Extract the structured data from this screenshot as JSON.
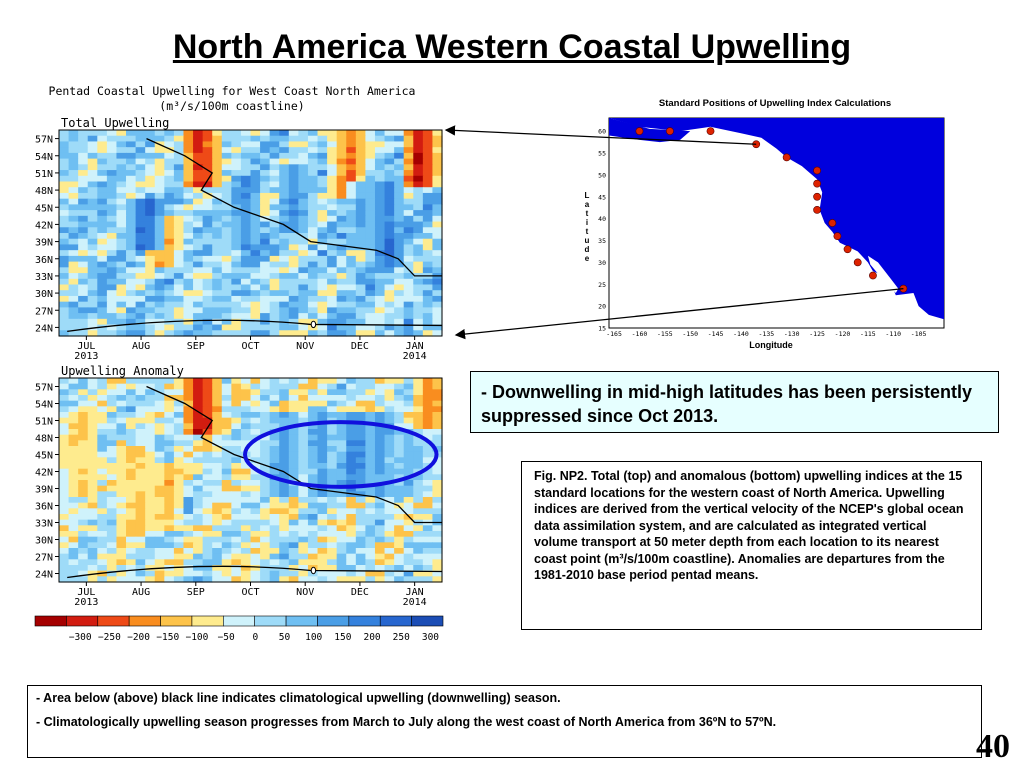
{
  "slide": {
    "title": "North America Western Coastal Upwelling",
    "page_number": "40"
  },
  "figure": {
    "title_line1": "Pentad Coastal Upwelling for West Coast North America",
    "title_line2": "(m³/s/100m coastline)"
  },
  "map": {
    "title": "Standard Positions of Upwelling Index Calculations",
    "xlabel": "Longitude",
    "ylabel": "Latitude",
    "lon_ticks": [
      "-165",
      "-160",
      "-155",
      "-150",
      "-145",
      "-140",
      "-135",
      "-130",
      "-125",
      "-120",
      "-115",
      "-110",
      "-105"
    ],
    "lat_ticks": [
      "60",
      "55",
      "50",
      "45",
      "40",
      "35",
      "30",
      "25",
      "20",
      "15"
    ],
    "stations": [
      {
        "lon": -160,
        "lat": 60
      },
      {
        "lon": -154,
        "lat": 60
      },
      {
        "lon": -146,
        "lat": 60
      },
      {
        "lon": -137,
        "lat": 57
      },
      {
        "lon": -131,
        "lat": 54
      },
      {
        "lon": -125,
        "lat": 51
      },
      {
        "lon": -125,
        "lat": 48
      },
      {
        "lon": -125,
        "lat": 45
      },
      {
        "lon": -125,
        "lat": 42
      },
      {
        "lon": -122,
        "lat": 39
      },
      {
        "lon": -121,
        "lat": 36
      },
      {
        "lon": -119,
        "lat": 33
      },
      {
        "lon": -117,
        "lat": 30
      },
      {
        "lon": -114,
        "lat": 27
      },
      {
        "lon": -108,
        "lat": 24
      }
    ],
    "colors": {
      "ocean": "#ffffff",
      "land": "#0000dd",
      "station": "#dd2200"
    }
  },
  "callout": {
    "dash": "- ",
    "text": "Downwelling in mid-high latitudes has been persistently suppressed since Oct 2013."
  },
  "caption": {
    "text": "Fig. NP2. Total (top) and anomalous (bottom) upwelling indices at the 15 standard locations for the western coast of North America. Upwelling indices are derived from the vertical velocity of the NCEP's global ocean data assimilation system, and are calculated as integrated vertical volume transport at 50 meter depth from each location to its nearest coast point (m³/s/100m coastline). Anomalies are departures from the 1981-2010 base period pentad means."
  },
  "notes": [
    {
      "dash": "- ",
      "text": "Area below (above) black line indicates climatological upwelling (downwelling) season."
    },
    {
      "dash": "- ",
      "text": "Climatologically upwelling season progresses from March to July along the west coast of North America from 36ºN to 57ºN."
    }
  ],
  "chart_data": [
    {
      "type": "heatmap",
      "title": "Total Upwelling",
      "y_ticks": [
        "57N",
        "54N",
        "51N",
        "48N",
        "45N",
        "42N",
        "39N",
        "36N",
        "33N",
        "30N",
        "27N",
        "24N"
      ],
      "x_ticks": [
        "JUL",
        "AUG",
        "SEP",
        "OCT",
        "NOV",
        "DEC",
        "JAN"
      ],
      "x_ticks_year": {
        "JUL": "2013",
        "JAN": "2014"
      },
      "latitudes": [
        57,
        54,
        51,
        48,
        45,
        42,
        39,
        36,
        33,
        30,
        27,
        24
      ],
      "pentads": 40,
      "climatology_boundary": [
        {
          "month_index": 1.6,
          "lat": 57
        },
        {
          "month_index": 2.3,
          "lat": 54
        },
        {
          "month_index": 2.8,
          "lat": 51
        },
        {
          "month_index": 2.6,
          "lat": 48
        },
        {
          "month_index": 3.2,
          "lat": 45
        },
        {
          "month_index": 4.1,
          "lat": 42
        },
        {
          "month_index": 4.6,
          "lat": 39
        },
        {
          "month_index": 5.8,
          "lat": 37.5
        },
        {
          "month_index": 6.2,
          "lat": 36
        },
        {
          "month_index": 6.5,
          "lat": 33
        },
        {
          "month_index": 7.0,
          "lat": 33
        }
      ],
      "hot_spots": [
        {
          "month_index": 2.6,
          "lat_from": 57,
          "lat_to": 50,
          "value": -300
        },
        {
          "month_index": 5.3,
          "lat_from": 57,
          "lat_to": 48,
          "value": -200
        },
        {
          "month_index": 6.6,
          "lat_from": 57,
          "lat_to": 50,
          "value": -300
        },
        {
          "month_index": 1.9,
          "lat_from": 42,
          "lat_to": 36,
          "value": -150
        },
        {
          "month_index": 0.8,
          "lat_from": 48,
          "lat_to": 42,
          "value": 100
        },
        {
          "month_index": 1.6,
          "lat_from": 45,
          "lat_to": 39,
          "value": 250
        },
        {
          "month_index": 3.4,
          "lat_from": 48,
          "lat_to": 39,
          "value": 150
        },
        {
          "month_index": 4.3,
          "lat_from": 51,
          "lat_to": 42,
          "value": 150
        },
        {
          "month_index": 5.6,
          "lat_from": 48,
          "lat_to": 39,
          "value": 150
        },
        {
          "month_index": 6.0,
          "lat_from": 48,
          "lat_to": 36,
          "value": 200
        }
      ]
    },
    {
      "type": "heatmap",
      "title": "Upwelling Anomaly",
      "y_ticks": [
        "57N",
        "54N",
        "51N",
        "48N",
        "45N",
        "42N",
        "39N",
        "36N",
        "33N",
        "30N",
        "27N",
        "24N"
      ],
      "x_ticks": [
        "JUL",
        "AUG",
        "SEP",
        "OCT",
        "NOV",
        "DEC",
        "JAN"
      ],
      "x_ticks_year": {
        "JUL": "2013",
        "JAN": "2014"
      },
      "latitudes": [
        57,
        54,
        51,
        48,
        45,
        42,
        39,
        36,
        33,
        30,
        27,
        24
      ],
      "pentads": 40,
      "highlight_region": {
        "month_from": 3.4,
        "month_to": 6.9,
        "lat_from": 50,
        "lat_to": 40
      },
      "hot_spots": [
        {
          "month_index": 2.6,
          "lat_from": 57,
          "lat_to": 50,
          "value": -300
        },
        {
          "month_index": 0.4,
          "lat_from": 51,
          "lat_to": 39,
          "value": -100
        },
        {
          "month_index": 1.4,
          "lat_from": 45,
          "lat_to": 33,
          "value": -100
        },
        {
          "month_index": 2.0,
          "lat_from": 42,
          "lat_to": 33,
          "value": -100
        },
        {
          "month_index": 6.8,
          "lat_from": 57,
          "lat_to": 51,
          "value": -150
        },
        {
          "month_index": 4.1,
          "lat_from": 51,
          "lat_to": 39,
          "value": 150
        },
        {
          "month_index": 4.8,
          "lat_from": 51,
          "lat_to": 39,
          "value": 150
        },
        {
          "month_index": 5.4,
          "lat_from": 51,
          "lat_to": 39,
          "value": 200
        },
        {
          "month_index": 5.9,
          "lat_from": 51,
          "lat_to": 39,
          "value": 150
        },
        {
          "month_index": 6.4,
          "lat_from": 48,
          "lat_to": 39,
          "value": 100
        }
      ]
    }
  ],
  "colorbar": {
    "labels": [
      "−300",
      "−250",
      "−200",
      "−150",
      "−100",
      "−50",
      "0",
      "50",
      "100",
      "150",
      "200",
      "250",
      "300"
    ],
    "colors": [
      "#a50000",
      "#d21c10",
      "#ee4a17",
      "#f98d1f",
      "#fdc34a",
      "#feeb8e",
      "#cff2fb",
      "#9edbf8",
      "#6fbff2",
      "#4a9ee6",
      "#3481dd",
      "#2766cf",
      "#1b4db5"
    ]
  }
}
